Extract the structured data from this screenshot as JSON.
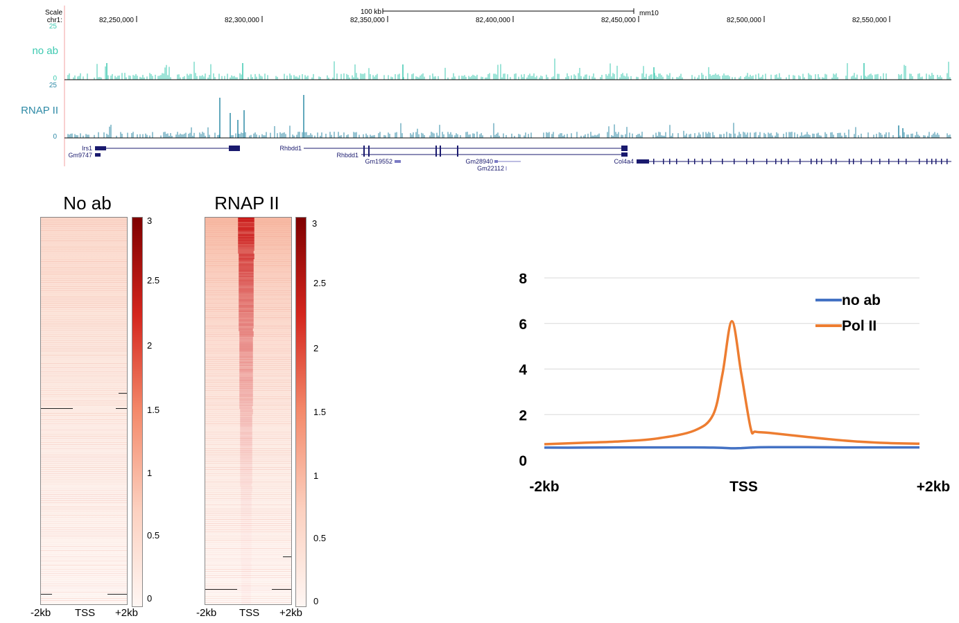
{
  "colors": {
    "noab_track": "#3cc9b0",
    "rnap_track": "#2e8aa6",
    "gene": "#1a1a6e",
    "gene_light": "#7b7bc4",
    "heat_low": "#fef6f3",
    "heat_high": "#8b0000",
    "noab_line": "#4472c4",
    "polii_line": "#ed7d31"
  },
  "browser": {
    "scale_label": "Scale",
    "chrom_label": "chr1:",
    "scale_bar_label": "100 kb",
    "assembly": "mm10",
    "positions": [
      "82,250,000",
      "82,300,000",
      "82,350,000",
      "82,400,000",
      "82,450,000",
      "82,500,000",
      "82,550,000"
    ],
    "tracks": [
      {
        "label": "no ab",
        "max": "25",
        "min": "0"
      },
      {
        "label": "RNAP II",
        "max": "25",
        "min": "0"
      }
    ],
    "genes": [
      "Irs1",
      "Gm9747",
      "Rhbdd1",
      "Rhbdd1",
      "Gm19552",
      "Gm28940",
      "Gm22112",
      "Col4a4"
    ]
  },
  "chart_data": [
    {
      "type": "heatmap",
      "title": "No ab",
      "x_tick_labels": [
        "-2kb",
        "TSS",
        "+2kb"
      ],
      "colorbar_range": [
        0,
        3
      ],
      "colorbar_ticks": [
        "0",
        "0.5",
        "1",
        "1.5",
        "2",
        "2.5",
        "3"
      ]
    },
    {
      "type": "heatmap",
      "title": "RNAP II",
      "x_tick_labels": [
        "-2kb",
        "TSS",
        "+2kb"
      ],
      "colorbar_range": [
        0,
        3
      ],
      "colorbar_ticks": [
        "0",
        "0.5",
        "1",
        "1.5",
        "2",
        "2.5",
        "3"
      ]
    },
    {
      "type": "line",
      "x": [
        -2000,
        -1600,
        -1200,
        -800,
        -400,
        -200,
        -100,
        0,
        100,
        200,
        250,
        400,
        800,
        1200,
        1600,
        2000
      ],
      "x_tick_labels": [
        "-2kb",
        "TSS",
        "+2kb"
      ],
      "ylim": [
        0,
        8
      ],
      "y_ticks": [
        0,
        2,
        4,
        6,
        8
      ],
      "grid": true,
      "legend": "top-right",
      "series": [
        {
          "name": "no ab",
          "values": [
            0.55,
            0.55,
            0.56,
            0.56,
            0.56,
            0.55,
            0.54,
            0.52,
            0.53,
            0.55,
            0.56,
            0.57,
            0.57,
            0.56,
            0.56,
            0.56
          ]
        },
        {
          "name": "Pol II",
          "values": [
            0.7,
            0.76,
            0.82,
            0.95,
            1.3,
            2.0,
            3.8,
            6.1,
            3.8,
            1.4,
            1.25,
            1.2,
            1.02,
            0.86,
            0.76,
            0.72
          ]
        }
      ]
    }
  ]
}
